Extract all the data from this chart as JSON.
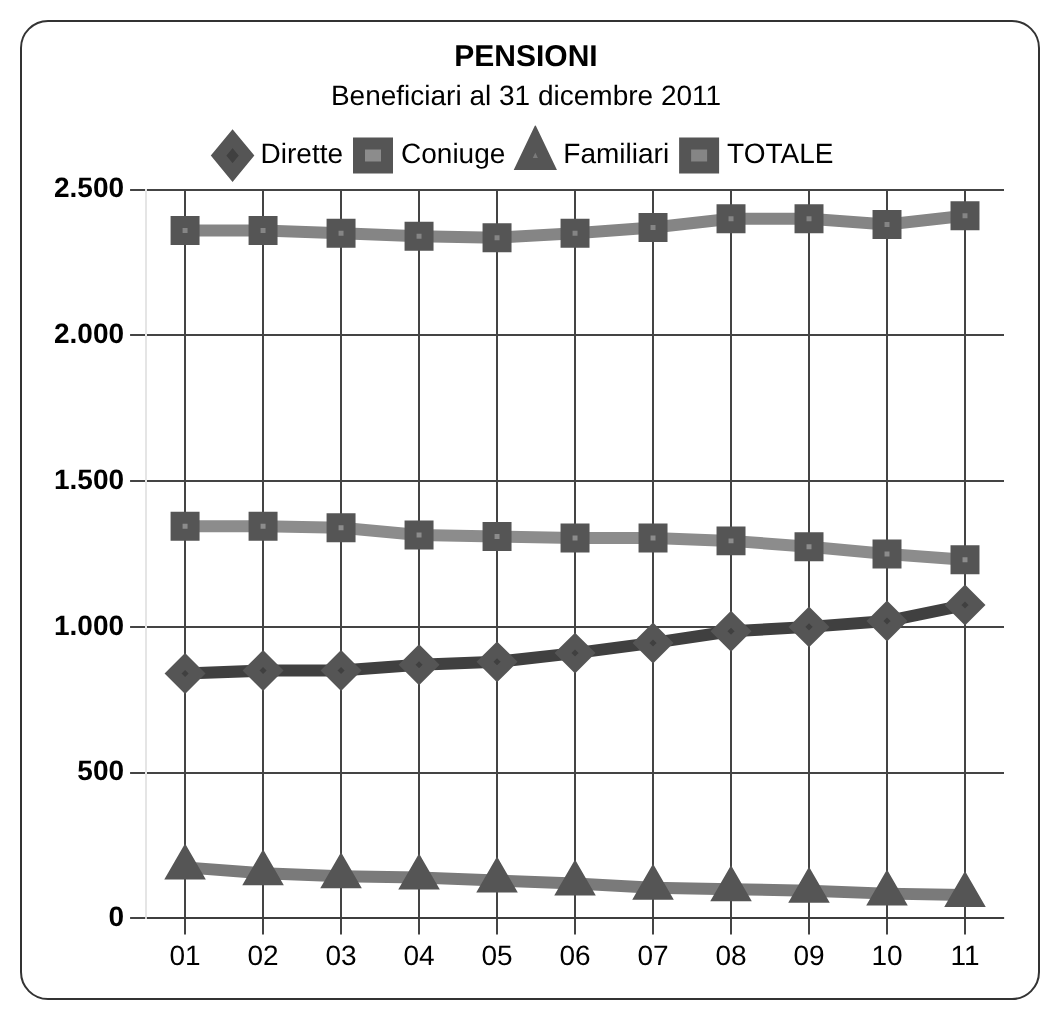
{
  "chart_data": {
    "type": "line",
    "title": "PENSIONI",
    "subtitle": "Beneficiari al 31 dicembre 2011",
    "categories": [
      "01",
      "02",
      "03",
      "04",
      "05",
      "06",
      "07",
      "08",
      "09",
      "10",
      "11"
    ],
    "series": [
      {
        "name": "Dirette",
        "color": "#404040",
        "marker": "diamond",
        "values": [
          840,
          850,
          850,
          870,
          880,
          910,
          945,
          985,
          1000,
          1020,
          1075
        ]
      },
      {
        "name": "Coniuge",
        "color": "#8c8c8c",
        "marker": "square",
        "values": [
          1345,
          1345,
          1340,
          1315,
          1310,
          1305,
          1305,
          1295,
          1275,
          1250,
          1230
        ]
      },
      {
        "name": "Familiari",
        "color": "#7a7a7a",
        "marker": "triangle",
        "values": [
          175,
          155,
          145,
          140,
          130,
          120,
          105,
          100,
          95,
          85,
          80
        ]
      },
      {
        "name": "TOTALE",
        "color": "#858585",
        "marker": "square",
        "values": [
          2360,
          2360,
          2350,
          2340,
          2335,
          2350,
          2370,
          2400,
          2400,
          2380,
          2410
        ]
      }
    ],
    "ylim": [
      0,
      2500
    ],
    "yticks": [
      {
        "value": 0,
        "label": "0"
      },
      {
        "value": 500,
        "label": "500"
      },
      {
        "value": 1000,
        "label": "1.000"
      },
      {
        "value": 1500,
        "label": "1.500"
      },
      {
        "value": 2000,
        "label": "2.000"
      },
      {
        "value": 2500,
        "label": "2.500"
      }
    ],
    "grid": true,
    "legend": "top",
    "line_style": "solid"
  }
}
